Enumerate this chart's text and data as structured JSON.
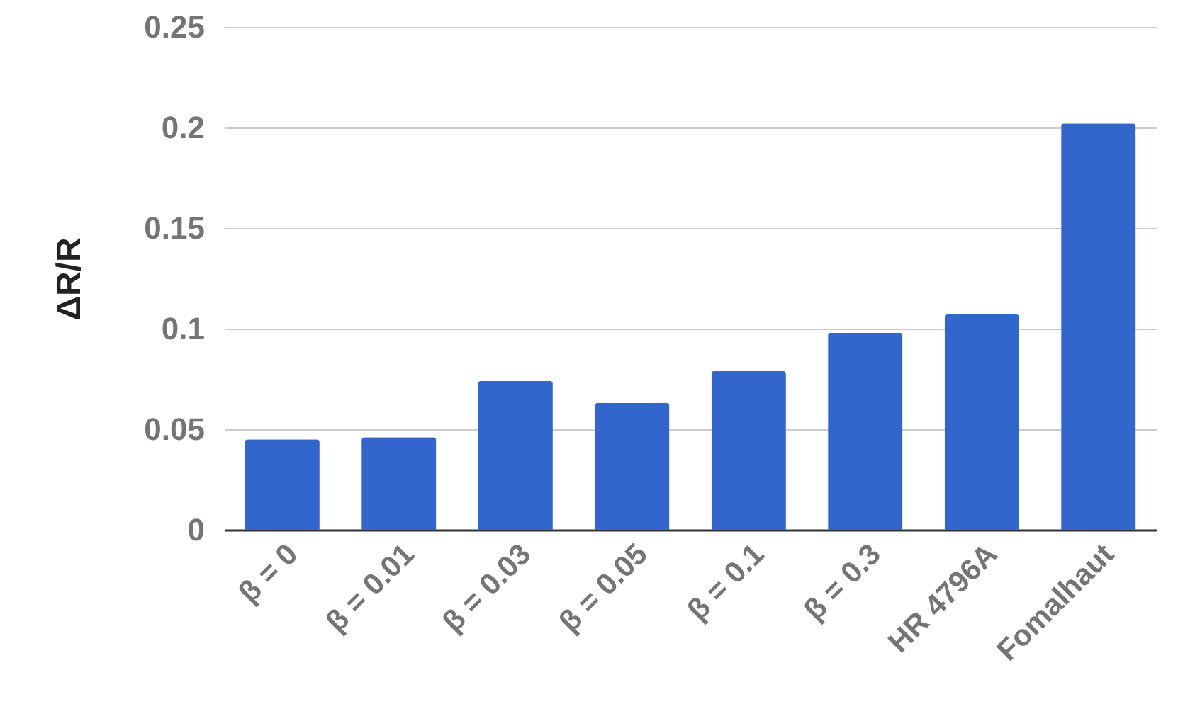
{
  "chart_data": {
    "type": "bar",
    "ylabel": "ΔR/R",
    "categories": [
      "β = 0",
      "β = 0.01",
      "β = 0.03",
      "β = 0.05",
      "β = 0.1",
      "β = 0.3",
      "HR 4796A",
      "Fomalhaut"
    ],
    "values": [
      0.045,
      0.046,
      0.074,
      0.063,
      0.079,
      0.098,
      0.107,
      0.202
    ],
    "color": "#3366cc",
    "ylim": [
      0,
      0.25
    ],
    "yticks": [
      0,
      0.05,
      0.1,
      0.15,
      0.2,
      0.25
    ],
    "grid": "y"
  }
}
